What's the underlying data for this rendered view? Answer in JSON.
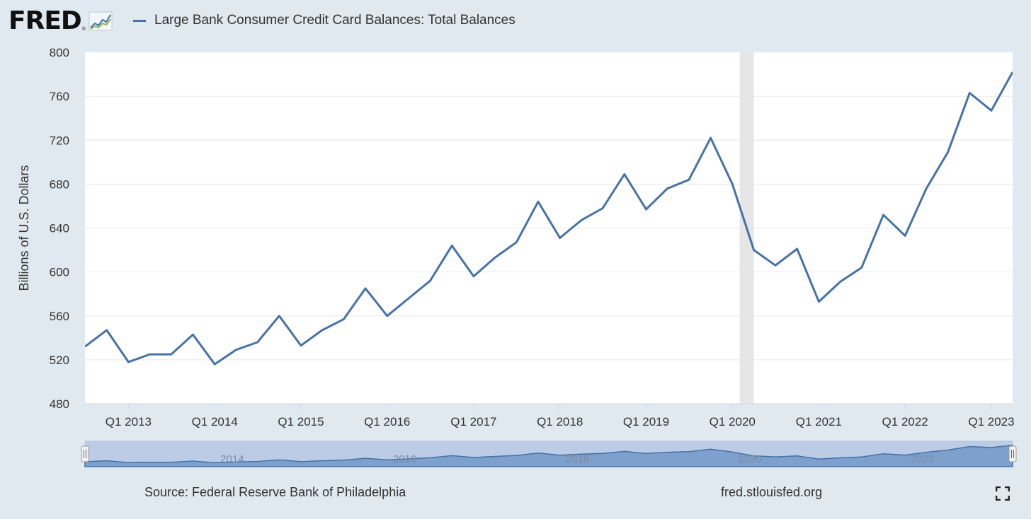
{
  "header": {
    "logo_text": "FRED",
    "logo_reg": "®",
    "logo_icon": "line-chart-icon",
    "legend_label": "Large Bank Consumer Credit Card Balances: Total Balances"
  },
  "footer": {
    "source": "Source: Federal Reserve Bank of Philadelphia",
    "url": "fred.stlouisfed.org",
    "fullscreen_icon": "fullscreen-icon"
  },
  "colors": {
    "series": "#4572a7",
    "background": "#e1e9f0",
    "plot_background": "#ffffff",
    "recession": "#e6e6e6",
    "navigator_fill": "#7ea0cc",
    "navigator_mask": "#bccbe6"
  },
  "chart_data": {
    "type": "line",
    "ylabel": "Billions of U.S. Dollars",
    "ylim": [
      480,
      800
    ],
    "yticks": [
      480,
      520,
      560,
      600,
      640,
      680,
      720,
      760,
      800
    ],
    "xlim": [
      "2012-07-01",
      "2023-04-01"
    ],
    "xticks": [
      {
        "date": "2013-01-01",
        "label": "Q1 2013"
      },
      {
        "date": "2014-01-01",
        "label": "Q1 2014"
      },
      {
        "date": "2015-01-01",
        "label": "Q1 2015"
      },
      {
        "date": "2016-01-01",
        "label": "Q1 2016"
      },
      {
        "date": "2017-01-01",
        "label": "Q1 2017"
      },
      {
        "date": "2018-01-01",
        "label": "Q1 2018"
      },
      {
        "date": "2019-01-01",
        "label": "Q1 2019"
      },
      {
        "date": "2020-01-01",
        "label": "Q1 2020"
      },
      {
        "date": "2021-01-01",
        "label": "Q1 2021"
      },
      {
        "date": "2022-01-01",
        "label": "Q1 2022"
      },
      {
        "date": "2023-01-01",
        "label": "Q1 2023"
      }
    ],
    "grid": true,
    "recession": {
      "start": "2020-02-01",
      "end": "2020-04-01"
    },
    "series": [
      {
        "name": "Large Bank Consumer Credit Card Balances: Total Balances",
        "x": [
          "2012-07-01",
          "2012-10-01",
          "2013-01-01",
          "2013-04-01",
          "2013-07-01",
          "2013-10-01",
          "2014-01-01",
          "2014-04-01",
          "2014-07-01",
          "2014-10-01",
          "2015-01-01",
          "2015-04-01",
          "2015-07-01",
          "2015-10-01",
          "2016-01-01",
          "2016-04-01",
          "2016-07-01",
          "2016-10-01",
          "2017-01-01",
          "2017-04-01",
          "2017-07-01",
          "2017-10-01",
          "2018-01-01",
          "2018-04-01",
          "2018-07-01",
          "2018-10-01",
          "2019-01-01",
          "2019-04-01",
          "2019-07-01",
          "2019-10-01",
          "2020-01-01",
          "2020-04-01",
          "2020-07-01",
          "2020-10-01",
          "2021-01-01",
          "2021-04-01",
          "2021-07-01",
          "2021-10-01",
          "2022-01-01",
          "2022-04-01",
          "2022-07-01",
          "2022-10-01",
          "2023-01-01",
          "2023-04-01"
        ],
        "y": [
          532,
          547,
          518,
          525,
          525,
          543,
          516,
          529,
          536,
          560,
          533,
          547,
          557,
          585,
          560,
          576,
          592,
          624,
          596,
          613,
          627,
          664,
          631,
          647,
          658,
          689,
          657,
          676,
          684,
          722,
          680,
          620,
          606,
          621,
          573,
          591,
          604,
          652,
          633,
          676,
          709,
          763,
          747,
          782
        ]
      }
    ],
    "navigator": {
      "tick_labels": [
        "2014",
        "2016",
        "2018",
        "2020",
        "2022"
      ]
    }
  }
}
